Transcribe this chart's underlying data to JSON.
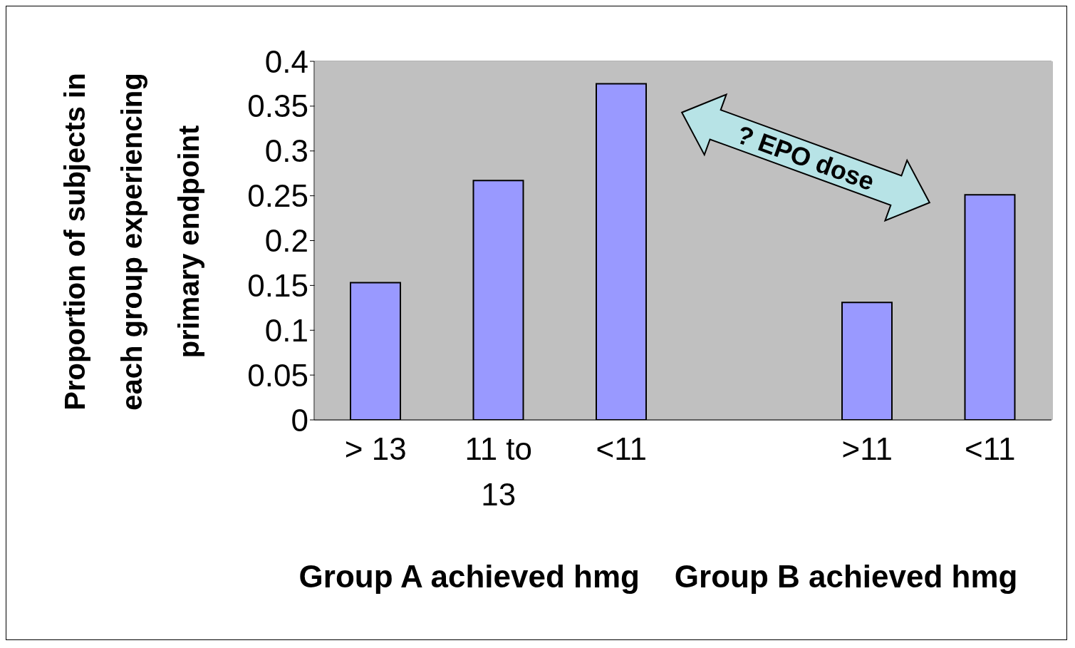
{
  "chart_data": {
    "type": "bar",
    "ylabel": "Proportion of subjects in each group experiencing primary endpoint",
    "xlabel": "Group A achieved hmg    Group B achieved hmg",
    "categories": [
      "> 13",
      "11 to 13",
      "<11",
      null,
      ">11",
      "<11"
    ],
    "values": [
      0.153,
      0.267,
      0.375,
      null,
      0.131,
      0.251
    ],
    "color": "#9999ff",
    "ylim": [
      0,
      0.4
    ],
    "yticks": [
      0,
      0.05,
      0.1,
      0.15,
      0.2,
      0.25,
      0.3,
      0.35,
      0.4
    ],
    "grid": "y",
    "annotations": [
      "? EPO dose"
    ]
  }
}
